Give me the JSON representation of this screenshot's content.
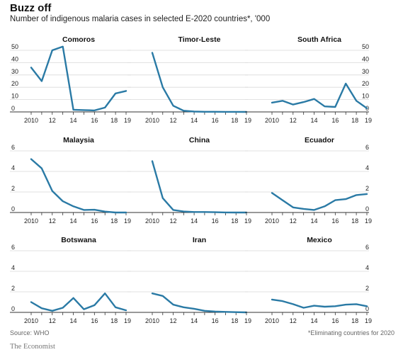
{
  "title": "Buzz off",
  "subtitle": "Number of indigenous malaria cases in selected E-2020 countries*, '000",
  "source": "Source: WHO",
  "footnote": "*Eliminating countries for 2020",
  "brand": "The Economist",
  "colors": {
    "line": "#2a7aa5",
    "grid": "#d9d9d9",
    "baseline": "#333333",
    "text": "#222222"
  },
  "chart_data": [
    {
      "type": "line",
      "title": "Comoros",
      "x": [
        2010,
        2011,
        2012,
        2013,
        2014,
        2015,
        2016,
        2017,
        2018,
        2019
      ],
      "y": [
        36,
        25,
        50,
        53,
        1.8,
        1.5,
        1.2,
        3.5,
        15,
        17
      ],
      "ylim": [
        0,
        50
      ],
      "yticks": [
        0,
        10,
        20,
        30,
        40,
        50
      ],
      "xticks": [
        "2010",
        "12",
        "14",
        "16",
        "18",
        "19"
      ],
      "grid": true
    },
    {
      "type": "line",
      "title": "Timor-Leste",
      "x": [
        2010,
        2011,
        2012,
        2013,
        2014,
        2015,
        2016,
        2017,
        2018,
        2019
      ],
      "y": [
        48,
        20,
        5,
        1,
        0.3,
        0.1,
        0.1,
        0.05,
        0.05,
        0
      ],
      "ylim": [
        0,
        50
      ],
      "yticks": [
        0,
        10,
        20,
        30,
        40,
        50
      ],
      "xticks": [
        "2010",
        "12",
        "14",
        "16",
        "18",
        "19"
      ],
      "grid": true
    },
    {
      "type": "line",
      "title": "South Africa",
      "x": [
        2010,
        2011,
        2012,
        2013,
        2014,
        2015,
        2016,
        2017,
        2018,
        2019
      ],
      "y": [
        7.5,
        9,
        6,
        8,
        10.5,
        4.5,
        4,
        23,
        9,
        3
      ],
      "ylim": [
        0,
        50
      ],
      "yticks": [
        0,
        10,
        20,
        30,
        40,
        50
      ],
      "xticks": [
        "2010",
        "12",
        "14",
        "16",
        "18",
        "19"
      ],
      "grid": true
    },
    {
      "type": "line",
      "title": "Malaysia",
      "x": [
        2010,
        2011,
        2012,
        2013,
        2014,
        2015,
        2016,
        2017,
        2018,
        2019
      ],
      "y": [
        5.2,
        4.3,
        2.1,
        1.1,
        0.6,
        0.25,
        0.27,
        0.09,
        0,
        0
      ],
      "ylim": [
        0,
        6
      ],
      "yticks": [
        0,
        2,
        4,
        6
      ],
      "xticks": [
        "2010",
        "12",
        "14",
        "16",
        "18",
        "19"
      ],
      "grid": true
    },
    {
      "type": "line",
      "title": "China",
      "x": [
        2010,
        2011,
        2012,
        2013,
        2014,
        2015,
        2016,
        2017,
        2018,
        2019
      ],
      "y": [
        5,
        1.4,
        0.25,
        0.1,
        0.05,
        0.05,
        0.03,
        0.01,
        0,
        0
      ],
      "ylim": [
        0,
        6
      ],
      "yticks": [
        0,
        2,
        4,
        6
      ],
      "xticks": [
        "2010",
        "12",
        "14",
        "16",
        "18",
        "19"
      ],
      "grid": true
    },
    {
      "type": "line",
      "title": "Ecuador",
      "x": [
        2010,
        2011,
        2012,
        2013,
        2014,
        2015,
        2016,
        2017,
        2018,
        2019
      ],
      "y": [
        1.9,
        1.2,
        0.5,
        0.35,
        0.25,
        0.6,
        1.2,
        1.3,
        1.7,
        1.8
      ],
      "ylim": [
        0,
        6
      ],
      "yticks": [
        0,
        2,
        4,
        6
      ],
      "xticks": [
        "2010",
        "12",
        "14",
        "16",
        "18",
        "19"
      ],
      "grid": true
    },
    {
      "type": "line",
      "title": "Botswana",
      "x": [
        2010,
        2011,
        2012,
        2013,
        2014,
        2015,
        2016,
        2017,
        2018,
        2019
      ],
      "y": [
        1.0,
        0.4,
        0.15,
        0.45,
        1.4,
        0.3,
        0.7,
        1.85,
        0.5,
        0.2
      ],
      "ylim": [
        0,
        6
      ],
      "yticks": [
        0,
        2,
        4,
        6
      ],
      "xticks": [
        "2010",
        "12",
        "14",
        "16",
        "18",
        "19"
      ],
      "grid": true
    },
    {
      "type": "line",
      "title": "Iran",
      "x": [
        2010,
        2011,
        2012,
        2013,
        2014,
        2015,
        2016,
        2017,
        2018,
        2019
      ],
      "y": [
        1.85,
        1.6,
        0.75,
        0.5,
        0.35,
        0.15,
        0.08,
        0.05,
        0.02,
        0
      ],
      "ylim": [
        0,
        6
      ],
      "yticks": [
        0,
        2,
        4,
        6
      ],
      "xticks": [
        "2010",
        "12",
        "14",
        "16",
        "18",
        "19"
      ],
      "grid": true
    },
    {
      "type": "line",
      "title": "Mexico",
      "x": [
        2010,
        2011,
        2012,
        2013,
        2014,
        2015,
        2016,
        2017,
        2018,
        2019
      ],
      "y": [
        1.25,
        1.1,
        0.8,
        0.45,
        0.65,
        0.55,
        0.6,
        0.75,
        0.8,
        0.6
      ],
      "ylim": [
        0,
        6
      ],
      "yticks": [
        0,
        2,
        4,
        6
      ],
      "xticks": [
        "2010",
        "12",
        "14",
        "16",
        "18",
        "19"
      ],
      "grid": true
    }
  ]
}
